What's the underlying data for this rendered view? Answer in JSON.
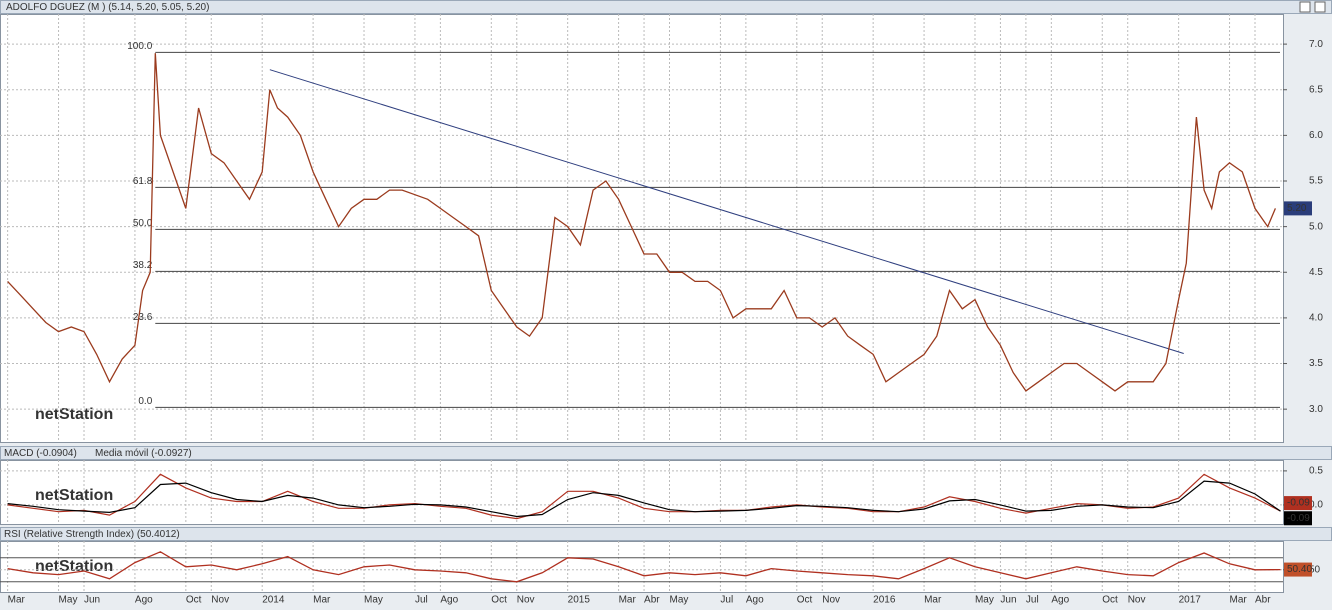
{
  "title": "ADOLFO DGUEZ (M ) (5.14, 5.20, 5.05, 5.20)",
  "logo": "netStation",
  "chart_data": [
    {
      "type": "line",
      "color": "#9b3b1e",
      "x": [
        0,
        0.5,
        1,
        1.5,
        2,
        2.5,
        3,
        3.5,
        4,
        4.5,
        5,
        5.3,
        5.6,
        5.8,
        6,
        6.5,
        7,
        7.5,
        8,
        8.5,
        9,
        9.5,
        10,
        10.3,
        10.6,
        11,
        11.5,
        12,
        12.5,
        13,
        13.5,
        14,
        14.5,
        15,
        15.5,
        16,
        16.5,
        17,
        17.5,
        18,
        18.5,
        19,
        19.5,
        20,
        20.5,
        21,
        21.5,
        22,
        22.5,
        23,
        23.5,
        24,
        24.5,
        25,
        25.5,
        26,
        26.5,
        27,
        27.5,
        28,
        28.5,
        29,
        29.5,
        30,
        30.5,
        31,
        31.5,
        32,
        32.5,
        33,
        33.5,
        34,
        34.5,
        35,
        35.5,
        36,
        36.5,
        37,
        37.5,
        38,
        38.5,
        39,
        39.5,
        40,
        40.5,
        41,
        41.5,
        42,
        42.5,
        43,
        43.5,
        44,
        44.5,
        45,
        45.5,
        46,
        46.3,
        46.7,
        47,
        47.3,
        47.6,
        48,
        48.5,
        49,
        49.5,
        49.8
      ],
      "values": [
        4.4,
        4.25,
        4.1,
        3.95,
        3.85,
        3.9,
        3.85,
        3.6,
        3.3,
        3.55,
        3.7,
        4.3,
        4.5,
        6.9,
        6.0,
        5.6,
        5.2,
        6.3,
        5.8,
        5.7,
        5.5,
        5.3,
        5.6,
        6.5,
        6.3,
        6.2,
        6.0,
        5.6,
        5.3,
        5.0,
        5.2,
        5.3,
        5.3,
        5.4,
        5.4,
        5.35,
        5.3,
        5.2,
        5.1,
        5.0,
        4.9,
        4.3,
        4.1,
        3.9,
        3.8,
        4.0,
        5.1,
        5.0,
        4.8,
        5.4,
        5.5,
        5.3,
        5.0,
        4.7,
        4.7,
        4.5,
        4.5,
        4.4,
        4.4,
        4.3,
        4.0,
        4.1,
        4.1,
        4.1,
        4.3,
        4.0,
        4.0,
        3.9,
        4.0,
        3.8,
        3.7,
        3.6,
        3.3,
        3.4,
        3.5,
        3.6,
        3.8,
        4.3,
        4.1,
        4.2,
        3.9,
        3.7,
        3.4,
        3.2,
        3.3,
        3.4,
        3.5,
        3.5,
        3.4,
        3.3,
        3.2,
        3.3,
        3.3,
        3.3,
        3.5,
        4.2,
        4.6,
        6.2,
        5.4,
        5.2,
        5.6,
        5.7,
        5.6,
        5.2,
        5.0,
        5.2
      ],
      "current": {
        "value": 5.2,
        "label": "5.20"
      },
      "fib_levels": [
        {
          "value": 6.91,
          "label": "100.0"
        },
        {
          "value": 5.43,
          "label": "61.8"
        },
        {
          "value": 4.97,
          "label": "50.0"
        },
        {
          "value": 4.51,
          "label": "38.2"
        },
        {
          "value": 3.94,
          "label": "23.6"
        },
        {
          "value": 3.02,
          "label": "0.0"
        }
      ],
      "trendline": {
        "x": [
          10.3,
          46.2
        ],
        "y": [
          6.72,
          3.61
        ]
      },
      "xlim": [
        -0.3,
        50.1
      ],
      "ylim": [
        2.64,
        7.33
      ],
      "yticks": [
        {
          "value": 3,
          "label": "3.0"
        },
        {
          "value": 3.5,
          "label": "3.5"
        },
        {
          "value": 4,
          "label": "4.0"
        },
        {
          "value": 4.5,
          "label": "4.5"
        },
        {
          "value": 5,
          "label": "5.0"
        },
        {
          "value": 5.5,
          "label": "5.5"
        },
        {
          "value": 6,
          "label": "6.0"
        },
        {
          "value": 6.5,
          "label": "6.5"
        },
        {
          "value": 7,
          "label": "7.0"
        }
      ],
      "grid": true
    },
    {
      "type": "line",
      "x": [
        0,
        1,
        2,
        3,
        4,
        5,
        6,
        7,
        8,
        9,
        10,
        11,
        12,
        13,
        14,
        15,
        16,
        17,
        18,
        19,
        20,
        21,
        22,
        23,
        24,
        25,
        26,
        27,
        28,
        29,
        30,
        31,
        32,
        33,
        34,
        35,
        36,
        37,
        38,
        39,
        40,
        41,
        42,
        43,
        44,
        45,
        46,
        47,
        48,
        49,
        50
      ],
      "series": [
        {
          "name": "MACD (-0.0904)",
          "color": "#b03020",
          "values": [
            0.0,
            -0.05,
            -0.1,
            -0.08,
            -0.15,
            0.05,
            0.45,
            0.25,
            0.1,
            0.05,
            0.05,
            0.2,
            0.05,
            -0.05,
            -0.05,
            0.0,
            0.02,
            -0.02,
            -0.05,
            -0.15,
            -0.2,
            -0.1,
            0.2,
            0.2,
            0.1,
            -0.05,
            -0.1,
            -0.1,
            -0.08,
            -0.08,
            -0.03,
            0.0,
            -0.03,
            -0.05,
            -0.1,
            -0.1,
            -0.03,
            0.12,
            0.05,
            -0.05,
            -0.12,
            -0.05,
            0.02,
            0.0,
            -0.05,
            -0.03,
            0.1,
            0.45,
            0.25,
            0.1,
            -0.09
          ],
          "last": {
            "value": -0.0904,
            "label": "-0.09"
          }
        },
        {
          "name": "Media móvil (-0.0927)",
          "color": "#000000",
          "values": [
            0.02,
            -0.02,
            -0.07,
            -0.09,
            -0.11,
            -0.04,
            0.3,
            0.32,
            0.18,
            0.08,
            0.05,
            0.14,
            0.1,
            0.0,
            -0.04,
            -0.02,
            0.01,
            0.0,
            -0.03,
            -0.1,
            -0.17,
            -0.14,
            0.08,
            0.18,
            0.14,
            0.03,
            -0.07,
            -0.1,
            -0.09,
            -0.08,
            -0.05,
            -0.01,
            -0.02,
            -0.04,
            -0.08,
            -0.1,
            -0.06,
            0.06,
            0.08,
            0.0,
            -0.09,
            -0.08,
            -0.02,
            0.0,
            -0.03,
            -0.04,
            0.05,
            0.35,
            0.32,
            0.16,
            -0.09
          ],
          "last": {
            "value": -0.0927,
            "label": "-0.09"
          }
        }
      ],
      "xlim": [
        -0.3,
        50.1
      ],
      "ylim": [
        -0.28,
        0.66
      ],
      "yticks": [
        {
          "value": 0,
          "label": "0.0"
        },
        0.5
      ],
      "grid": true
    },
    {
      "type": "line",
      "title": "RSI (Relative Strength Index) (50.4012)",
      "color": "#b03020",
      "x": [
        0,
        1,
        2,
        3,
        4,
        5,
        6,
        7,
        8,
        9,
        10,
        11,
        12,
        13,
        14,
        15,
        16,
        17,
        18,
        19,
        20,
        21,
        22,
        23,
        24,
        25,
        26,
        27,
        28,
        29,
        30,
        31,
        32,
        33,
        34,
        35,
        36,
        37,
        38,
        39,
        40,
        41,
        42,
        43,
        44,
        45,
        46,
        47,
        48,
        49,
        50
      ],
      "values": [
        52,
        45,
        42,
        48,
        35,
        62,
        80,
        55,
        58,
        50,
        60,
        72,
        50,
        42,
        55,
        58,
        50,
        48,
        45,
        35,
        30,
        45,
        70,
        68,
        55,
        40,
        45,
        42,
        45,
        40,
        52,
        48,
        45,
        42,
        40,
        35,
        52,
        70,
        55,
        45,
        35,
        45,
        55,
        48,
        42,
        40,
        62,
        78,
        60,
        50,
        50.4
      ],
      "current": {
        "value": 50.4,
        "label": "50.40"
      },
      "levels": [
        30,
        70
      ],
      "xlim": [
        -0.3,
        50.1
      ],
      "ylim": [
        13,
        98
      ],
      "yticks": [
        50
      ],
      "grid": true,
      "xticks": [
        {
          "value": 0,
          "label": "Mar"
        },
        {
          "value": 2,
          "label": "May"
        },
        {
          "value": 3,
          "label": "Jun"
        },
        {
          "value": 5,
          "label": "Ago"
        },
        {
          "value": 7,
          "label": "Oct"
        },
        {
          "value": 8,
          "label": "Nov"
        },
        {
          "value": 10,
          "label": "2014"
        },
        {
          "value": 12,
          "label": "Mar"
        },
        {
          "value": 14,
          "label": "May"
        },
        {
          "value": 16,
          "label": "Jul"
        },
        {
          "value": 17,
          "label": "Ago"
        },
        {
          "value": 19,
          "label": "Oct"
        },
        {
          "value": 20,
          "label": "Nov"
        },
        {
          "value": 22,
          "label": "2015"
        },
        {
          "value": 24,
          "label": "Mar"
        },
        {
          "value": 25,
          "label": "Abr"
        },
        {
          "value": 26,
          "label": "May"
        },
        {
          "value": 28,
          "label": "Jul"
        },
        {
          "value": 29,
          "label": "Ago"
        },
        {
          "value": 31,
          "label": "Oct"
        },
        {
          "value": 32,
          "label": "Nov"
        },
        {
          "value": 34,
          "label": "2016"
        },
        {
          "value": 36,
          "label": "Mar"
        },
        {
          "value": 38,
          "label": "May"
        },
        {
          "value": 39,
          "label": "Jun"
        },
        {
          "value": 40,
          "label": "Jul"
        },
        {
          "value": 41,
          "label": "Ago"
        },
        {
          "value": 43,
          "label": "Oct"
        },
        {
          "value": 44,
          "label": "Nov"
        },
        {
          "value": 46,
          "label": "2017"
        },
        {
          "value": 48,
          "label": "Mar"
        },
        {
          "value": 49,
          "label": "Abr"
        }
      ]
    }
  ]
}
